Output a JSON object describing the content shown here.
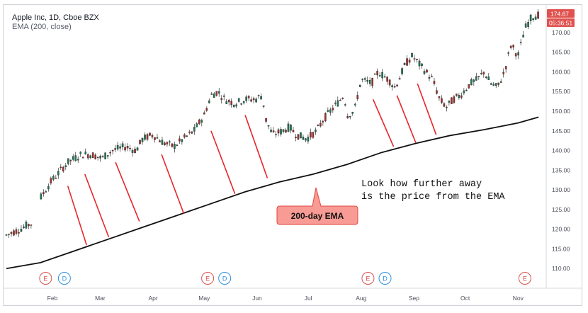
{
  "header": {
    "symbol_line": "Apple Inc, 1D, Cboe BZX",
    "indicator_line": "EMA (200, close)"
  },
  "price_badge": {
    "last": "174.67",
    "countdown": "05:36:51",
    "color": "#e0524f"
  },
  "annotation": {
    "text_line1": "Look how further away",
    "text_line2": "is the price from the EMA",
    "ema_label": "200-day EMA",
    "ema_label_bg": "#f79b94",
    "line_color": "#e8262a"
  },
  "chart_data": {
    "type": "candlestick",
    "title": "Apple Inc, 1D, Cboe BZX",
    "indicator": "EMA (200, close)",
    "xlabel": "",
    "ylabel": "",
    "ylim": [
      105,
      177
    ],
    "y_ticks": [
      110.0,
      115.0,
      120.0,
      125.0,
      130.0,
      135.0,
      140.0,
      145.0,
      150.0,
      155.0,
      160.0,
      165.0,
      170.0
    ],
    "x_tick_labels": [
      {
        "label": "Feb",
        "day": 27
      },
      {
        "label": "Mar",
        "day": 55
      },
      {
        "label": "Apr",
        "day": 86
      },
      {
        "label": "May",
        "day": 116
      },
      {
        "label": "Jun",
        "day": 147
      },
      {
        "label": "Jul",
        "day": 177
      },
      {
        "label": "Aug",
        "day": 208
      },
      {
        "label": "Sep",
        "day": 239
      },
      {
        "label": "Oct",
        "day": 269
      },
      {
        "label": "Nov",
        "day": 300
      }
    ],
    "x_range": [
      0,
      314
    ],
    "price_anchors": [
      [
        0,
        118.5
      ],
      [
        8,
        120
      ],
      [
        12,
        121
      ],
      [
        18,
        122
      ],
      [
        20,
        128
      ],
      [
        26,
        132
      ],
      [
        32,
        135
      ],
      [
        36,
        137
      ],
      [
        40,
        138
      ],
      [
        44,
        139
      ],
      [
        50,
        139
      ],
      [
        56,
        138
      ],
      [
        62,
        140
      ],
      [
        70,
        141
      ],
      [
        76,
        140
      ],
      [
        80,
        143
      ],
      [
        86,
        144
      ],
      [
        92,
        142
      ],
      [
        98,
        141
      ],
      [
        104,
        143
      ],
      [
        110,
        145
      ],
      [
        116,
        149
      ],
      [
        120,
        154
      ],
      [
        124,
        155
      ],
      [
        128,
        153
      ],
      [
        134,
        152
      ],
      [
        140,
        153
      ],
      [
        146,
        153
      ],
      [
        150,
        154
      ],
      [
        152,
        148
      ],
      [
        156,
        144
      ],
      [
        162,
        145
      ],
      [
        166,
        146
      ],
      [
        170,
        144
      ],
      [
        176,
        143
      ],
      [
        182,
        145
      ],
      [
        186,
        148
      ],
      [
        190,
        150
      ],
      [
        194,
        152
      ],
      [
        198,
        154
      ],
      [
        200,
        149
      ],
      [
        204,
        150
      ],
      [
        208,
        158
      ],
      [
        214,
        157
      ],
      [
        218,
        160
      ],
      [
        224,
        158
      ],
      [
        228,
        156
      ],
      [
        234,
        162
      ],
      [
        238,
        164
      ],
      [
        242,
        162
      ],
      [
        246,
        160
      ],
      [
        250,
        158
      ],
      [
        254,
        153
      ],
      [
        258,
        151
      ],
      [
        262,
        153
      ],
      [
        266,
        154
      ],
      [
        272,
        157
      ],
      [
        276,
        158
      ],
      [
        280,
        160
      ],
      [
        284,
        157
      ],
      [
        288,
        156
      ],
      [
        292,
        160
      ],
      [
        296,
        167
      ],
      [
        300,
        164
      ],
      [
        304,
        171
      ],
      [
        308,
        174
      ],
      [
        312,
        174.5
      ]
    ],
    "gaps": [
      [
        15,
        19
      ]
    ],
    "ema_200": [
      [
        0,
        110
      ],
      [
        20,
        111.5
      ],
      [
        40,
        114.5
      ],
      [
        60,
        117.5
      ],
      [
        80,
        120.5
      ],
      [
        100,
        123.5
      ],
      [
        120,
        126.5
      ],
      [
        140,
        129.5
      ],
      [
        160,
        132
      ],
      [
        180,
        134
      ],
      [
        200,
        136.5
      ],
      [
        220,
        139.5
      ],
      [
        240,
        141.8
      ],
      [
        260,
        143.8
      ],
      [
        280,
        145.3
      ],
      [
        300,
        147
      ],
      [
        312,
        148.5
      ]
    ],
    "event_markers": [
      {
        "day": 23,
        "label": "E",
        "kind": "earnings"
      },
      {
        "day": 34,
        "label": "D",
        "kind": "dividend"
      },
      {
        "day": 118,
        "label": "E",
        "kind": "earnings"
      },
      {
        "day": 128,
        "label": "D",
        "kind": "dividend"
      },
      {
        "day": 212,
        "label": "E",
        "kind": "earnings"
      },
      {
        "day": 222,
        "label": "D",
        "kind": "dividend"
      },
      {
        "day": 304,
        "label": "E",
        "kind": "earnings"
      }
    ],
    "distance_lines": [
      {
        "day1": 36,
        "p1": 131,
        "day2": 47,
        "p2": 116
      },
      {
        "day1": 46,
        "p1": 134,
        "day2": 60,
        "p2": 118
      },
      {
        "day1": 64,
        "p1": 137,
        "day2": 78,
        "p2": 122
      },
      {
        "day1": 91,
        "p1": 139,
        "day2": 104,
        "p2": 124
      },
      {
        "day1": 120,
        "p1": 145,
        "day2": 134,
        "p2": 129
      },
      {
        "day1": 140,
        "p1": 149,
        "day2": 153,
        "p2": 133
      },
      {
        "day1": 215,
        "p1": 153,
        "day2": 227,
        "p2": 141
      },
      {
        "day1": 229,
        "p1": 154,
        "day2": 240,
        "p2": 142
      },
      {
        "day1": 241,
        "p1": 157,
        "day2": 252,
        "p2": 144
      }
    ],
    "last_price": 174.67
  }
}
